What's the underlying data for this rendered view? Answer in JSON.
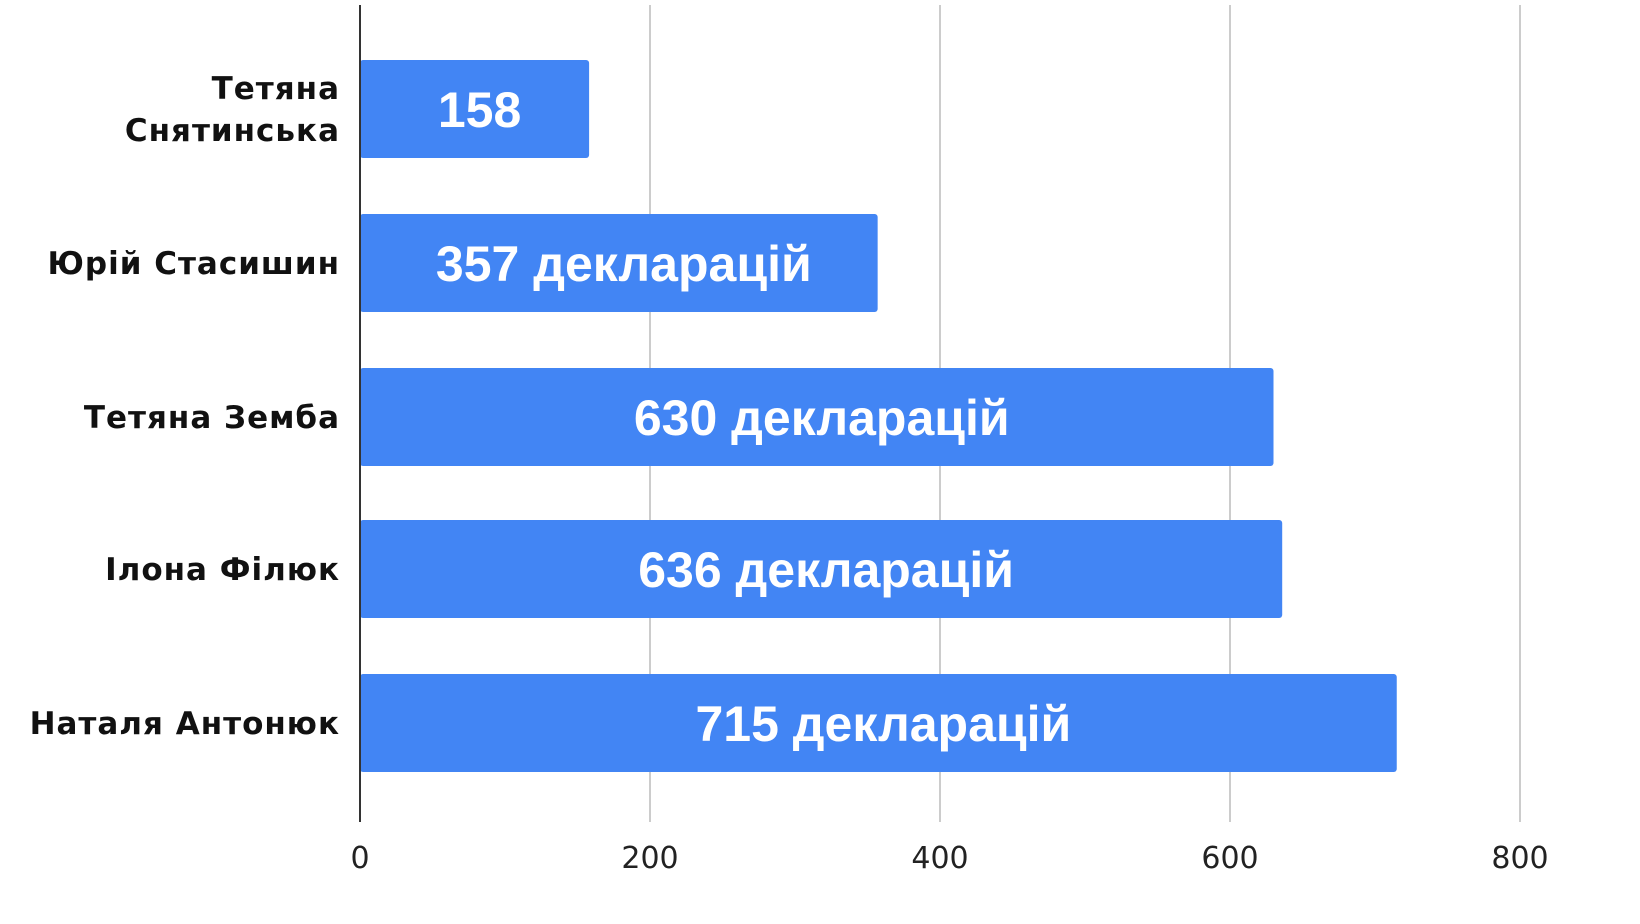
{
  "chart_data": {
    "type": "bar",
    "orientation": "horizontal",
    "categories": [
      [
        "Тетяна",
        "Снятинська"
      ],
      [
        "Юрій Стасишин"
      ],
      [
        "Тетяна Земба"
      ],
      [
        "Ілона Філюк"
      ],
      [
        "Наталя Антонюк"
      ]
    ],
    "values": [
      158,
      357,
      630,
      636,
      715
    ],
    "data_labels": [
      "158",
      "357 декларацій",
      "630 декларацій",
      "636 декларацій",
      "715 декларацій"
    ],
    "x_ticks": [
      "0",
      "200",
      "400",
      "600",
      "800"
    ],
    "xlim": [
      0,
      800
    ],
    "grid": true,
    "bar_color": "#4285F4",
    "title": "",
    "xlabel": "",
    "ylabel": ""
  }
}
